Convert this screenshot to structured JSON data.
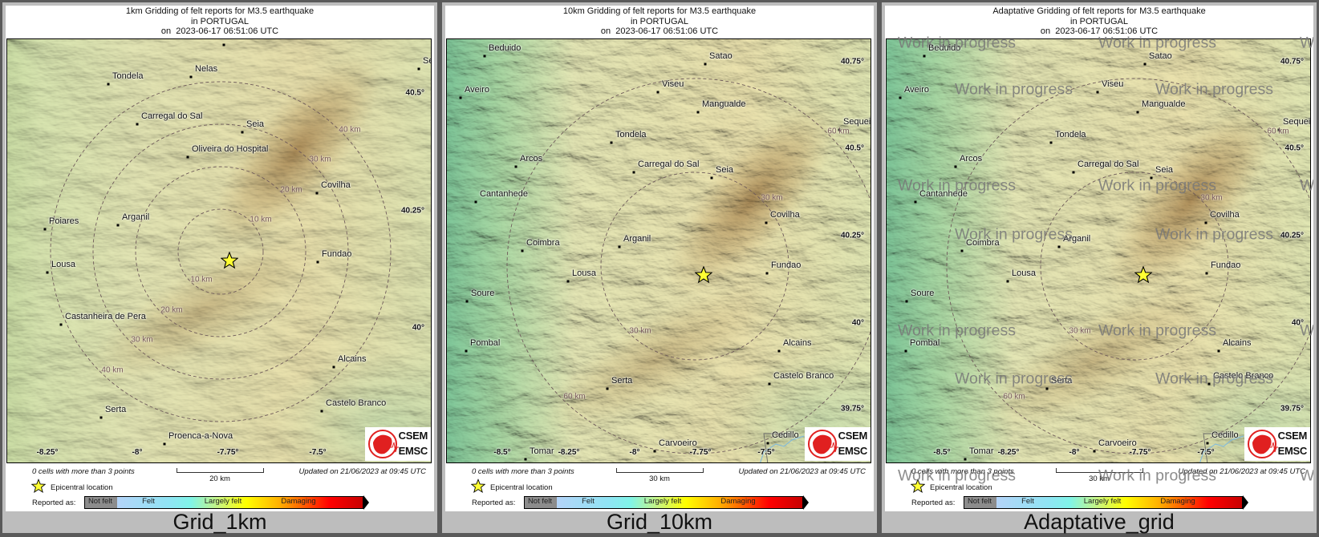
{
  "panels": [
    {
      "title": [
        "1km Gridding of felt reports for M3.5 earthquake",
        "in PORTUGAL",
        "on  2023-06-17 06:51:06 UTC"
      ],
      "label": "Grid_1km",
      "cities": [
        "Tondela",
        "Nelas",
        "Se",
        "",
        "Carregal do Sal",
        "Seia",
        "Oliveira do Hospital",
        "Covilha",
        "Poiares",
        "Arganil",
        "Lousa",
        "Fundao",
        "Castanheira de Pera",
        "Alcains",
        "Castelo Branco",
        "Serta",
        "Proenca-a-Nova"
      ],
      "ring_labels": [
        "10 km",
        "10 km",
        "20 km",
        "20 km",
        "30 km",
        "30 km",
        "40 km",
        "40 km"
      ],
      "lat_labels": [
        "40.5°",
        "40.25°",
        "40°"
      ],
      "lon_labels": [
        "-8.25°",
        "-8°",
        "-7.75°",
        "-7.5°"
      ],
      "cells_note": "0 cells with more than 3 points",
      "scale_label": "20 km",
      "updated": "Updated on 21/06/2023 at 09:45 UTC",
      "watermark": []
    },
    {
      "title": [
        "10km Gridding of felt reports for M3.5 earthquake",
        "in PORTUGAL",
        "on  2023-06-17 06:51:06 UTC"
      ],
      "label": "Grid_10km",
      "cities": [
        "Beduido",
        "Satao",
        "Aveiro",
        "Viseu",
        "Mangualde",
        "Sequei",
        "Tondela",
        "Arcos",
        "Carregal do Sal",
        "Seia",
        "Cantanhede",
        "Covilha",
        "Coimbra",
        "Arganil",
        "Lousa",
        "Fundao",
        "Soure",
        "Pombal",
        "Alcains",
        "Castelo Branco",
        "Serta",
        "Tomar",
        "Carvoeiro",
        "Cedillo"
      ],
      "ring_labels": [
        "30 km",
        "30 km",
        "60 km",
        "60 km"
      ],
      "lat_labels": [
        "40.75°",
        "40.5°",
        "40.25°",
        "40°",
        "39.75°"
      ],
      "lon_labels": [
        "-8.5°",
        "-8.25°",
        "-8°",
        "-7.75°",
        "-7.5°"
      ],
      "cells_note": "0 cells with more than 3 points",
      "scale_label": "30 km",
      "updated": "Updated on 21/06/2023 at 09:45 UTC",
      "watermark": []
    },
    {
      "title": [
        "Adaptative Gridding of felt reports for M3.5 earthquake",
        "in PORTUGAL",
        "on  2023-06-17 06:51:06 UTC"
      ],
      "label": "Adaptative_grid",
      "cities": [
        "Beduido",
        "Satao",
        "Aveiro",
        "Viseu",
        "Mangualde",
        "Sequei",
        "Tondela",
        "Arcos",
        "Carregal do Sal",
        "Seia",
        "Cantanhede",
        "Covilha",
        "Coimbra",
        "Arganil",
        "Lousa",
        "Fundao",
        "Soure",
        "Pombal",
        "Alcains",
        "Castelo Branco",
        "Serta",
        "Tomar",
        "Carvoeiro",
        "Cedillo"
      ],
      "ring_labels": [
        "30 km",
        "30 km",
        "60 km",
        "60 km"
      ],
      "lat_labels": [
        "40.75°",
        "40.5°",
        "40.25°",
        "40°",
        "39.75°"
      ],
      "lon_labels": [
        "-8.5°",
        "-8.25°",
        "-8°",
        "-7.75°",
        "-7.5°"
      ],
      "cells_note": "0 cells with more than 3 points",
      "scale_label": "30 km",
      "updated": "Updated on 21/06/2023 at 09:45 UTC",
      "watermark": [
        "Work in progress",
        "Work in progress",
        "Work in progress",
        "Work in progress",
        "Work in progress",
        "Work in progress",
        "Work in progress",
        "Work in progress",
        "Work in progress",
        "Work in progress",
        "Work in progress",
        "Work in progress",
        "Work in progress",
        "Work in progress",
        "Work in progress",
        "Work in progress",
        "Work in progress",
        "Work in progress"
      ]
    }
  ],
  "legend": {
    "epicenter": "Epicentral location",
    "reported_as": "Reported as:",
    "scale": [
      "Not felt",
      "Felt",
      "Largely felt",
      "Damaging"
    ],
    "scale_colors": [
      "#8c8c8c",
      "#b4d4f8",
      "#80f4e8",
      "#ffff00",
      "#ffb000",
      "#ff0000",
      "#c80000"
    ]
  },
  "logo": {
    "line1": "CSEM",
    "line2": "EMSC"
  },
  "epicenter_color": "#ffff33"
}
